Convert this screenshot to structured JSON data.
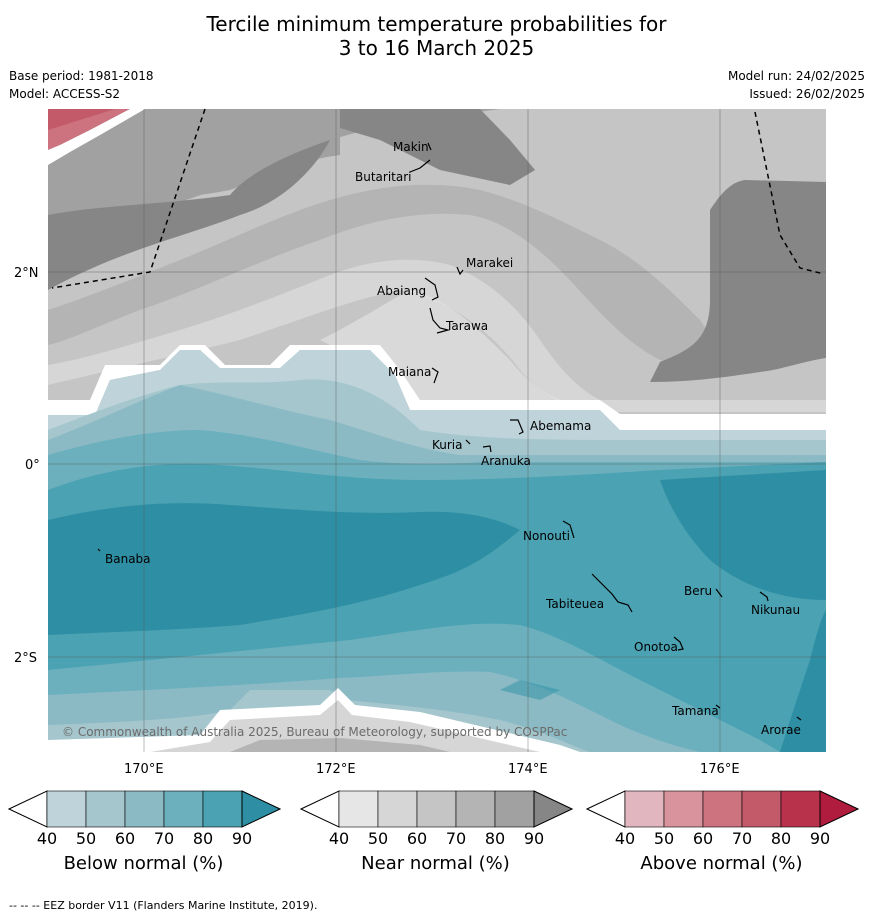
{
  "title": {
    "line1": "Tercile minimum temperature probabilities for",
    "line2": "3 to 16 March 2025"
  },
  "meta": {
    "base_period": "Base period: 1981-2018",
    "model": "Model: ACCESS-S2",
    "model_run": "Model run: 24/02/2025",
    "issued": "Issued: 26/02/2025"
  },
  "map": {
    "lat_labels": [
      "2°N",
      "0°",
      "2°S"
    ],
    "lon_labels": [
      "170°E",
      "172°E",
      "174°E",
      "176°E"
    ],
    "places": [
      "Makin",
      "Butaritari",
      "Marakei",
      "Abaiang",
      "Tarawa",
      "Maiana",
      "Abemama",
      "Kuria",
      "Aranuka",
      "Nonouti",
      "Banaba",
      "Tabiteuea",
      "Beru",
      "Nikunau",
      "Onotoa",
      "Tamana",
      "Arorae"
    ],
    "copyright": "© Commonwealth of Australia 2025, Bureau of Meteorology, supported by COSPPac"
  },
  "colorbars": [
    {
      "title": "Below normal (%)",
      "ticks": [
        "40",
        "50",
        "60",
        "70",
        "80",
        "90"
      ],
      "colors": [
        "#ffffff",
        "#bed3da",
        "#a5c6cd",
        "#8bbac5",
        "#6cb0be",
        "#4aa2b2",
        "#2e8fa4"
      ]
    },
    {
      "title": "Near normal (%)",
      "ticks": [
        "40",
        "50",
        "60",
        "70",
        "80",
        "90"
      ],
      "colors": [
        "#ffffff",
        "#e6e6e6",
        "#d6d6d6",
        "#c5c5c5",
        "#b4b4b4",
        "#a1a1a1",
        "#868686"
      ]
    },
    {
      "title": "Above normal (%)",
      "ticks": [
        "40",
        "50",
        "60",
        "70",
        "80",
        "90"
      ],
      "colors": [
        "#ffffff",
        "#e2b6bf",
        "#d8939c",
        "#cd7380",
        "#c35a6a",
        "#b8324b",
        "#b01c3e"
      ]
    }
  ],
  "footnote": "--  --  -- EEZ border V11 (Flanders Marine Institute, 2019)."
}
